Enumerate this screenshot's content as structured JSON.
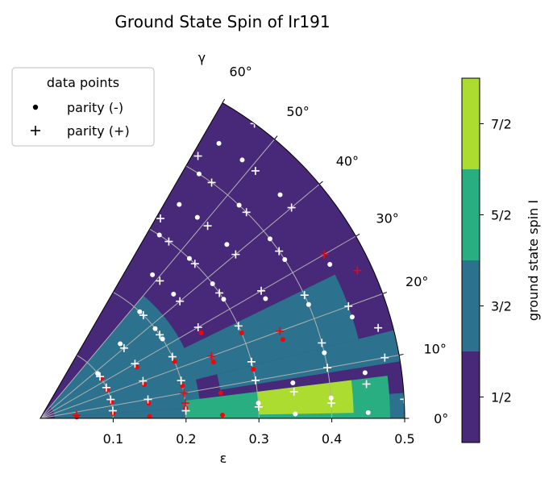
{
  "chart_data": {
    "type": "scatter",
    "title": "Ground State Spin of Ir191",
    "xlabel": "ε",
    "ylabel": "γ",
    "xlim": [
      0,
      0.5
    ],
    "ylim": [
      0,
      60
    ],
    "x_ticks": [
      "0.1",
      "0.2",
      "0.3",
      "0.4",
      "0.5"
    ],
    "angle_ticks": [
      "0°",
      "10°",
      "20°",
      "30°",
      "40°",
      "50°",
      "60°"
    ],
    "grid": true,
    "legend": {
      "title": "data points",
      "placement": "top-left",
      "entries": [
        {
          "marker": "dot",
          "label": "parity (-)"
        },
        {
          "marker": "plus",
          "label": "parity (+)"
        }
      ]
    },
    "colorbar": {
      "label": "ground state spin I",
      "ticks": [
        "1/2",
        "3/2",
        "5/2",
        "7/2"
      ],
      "colors": [
        "#482878",
        "#2c728e",
        "#28ae80",
        "#addc30"
      ]
    },
    "regions": [
      {
        "spin": "3/2",
        "eps": [
          0.02,
          0.5
        ],
        "gamma": [
          0,
          4
        ]
      },
      {
        "spin": "3/2",
        "eps": [
          0.02,
          0.22
        ],
        "gamma": [
          4,
          50
        ]
      },
      {
        "spin": "3/2",
        "eps": [
          0.18,
          0.45
        ],
        "gamma": [
          14,
          26
        ]
      },
      {
        "spin": "3/2",
        "eps": [
          0.25,
          0.5
        ],
        "gamma": [
          9,
          14
        ]
      },
      {
        "spin": "5/2",
        "eps": [
          0.2,
          0.48
        ],
        "gamma": [
          0,
          7
        ]
      },
      {
        "spin": "7/2",
        "eps": [
          0.3,
          0.43
        ],
        "gamma": [
          1,
          7
        ]
      }
    ],
    "series": [
      {
        "name": "parity (-)",
        "marker": "dot",
        "points": [
          {
            "eps": 0.3,
            "gamma": 57,
            "color": "white"
          },
          {
            "eps": 0.35,
            "gamma": 57,
            "color": "white"
          },
          {
            "eps": 0.4,
            "gamma": 57,
            "color": "white"
          },
          {
            "eps": 0.45,
            "gamma": 57,
            "color": "white"
          },
          {
            "eps": 0.25,
            "gamma": 52,
            "color": "white"
          },
          {
            "eps": 0.35,
            "gamma": 52,
            "color": "white"
          },
          {
            "eps": 0.45,
            "gamma": 52,
            "color": "white"
          },
          {
            "eps": 0.2,
            "gamma": 47,
            "color": "white"
          },
          {
            "eps": 0.3,
            "gamma": 47,
            "color": "white"
          },
          {
            "eps": 0.4,
            "gamma": 47,
            "color": "white"
          },
          {
            "eps": 0.15,
            "gamma": 43,
            "color": "white"
          },
          {
            "eps": 0.25,
            "gamma": 43,
            "color": "white"
          },
          {
            "eps": 0.35,
            "gamma": 43,
            "color": "white"
          },
          {
            "eps": 0.45,
            "gamma": 43,
            "color": "white"
          },
          {
            "eps": 0.1,
            "gamma": 38,
            "color": "white"
          },
          {
            "eps": 0.2,
            "gamma": 38,
            "color": "white"
          },
          {
            "eps": 0.3,
            "gamma": 38,
            "color": "white"
          },
          {
            "eps": 0.4,
            "gamma": 38,
            "color": "white"
          },
          {
            "eps": 0.1,
            "gamma": 33,
            "color": "red"
          },
          {
            "eps": 0.2,
            "gamma": 33,
            "color": "white"
          },
          {
            "eps": 0.3,
            "gamma": 33,
            "color": "white"
          },
          {
            "eps": 0.4,
            "gamma": 33,
            "color": "white"
          },
          {
            "eps": 0.15,
            "gamma": 28,
            "color": "red"
          },
          {
            "eps": 0.25,
            "gamma": 28,
            "color": "red"
          },
          {
            "eps": 0.35,
            "gamma": 28,
            "color": "white"
          },
          {
            "eps": 0.45,
            "gamma": 28,
            "color": "white"
          },
          {
            "eps": 0.1,
            "gamma": 23,
            "color": "red"
          },
          {
            "eps": 0.2,
            "gamma": 23,
            "color": "red"
          },
          {
            "eps": 0.3,
            "gamma": 23,
            "color": "red"
          },
          {
            "eps": 0.4,
            "gamma": 23,
            "color": "white"
          },
          {
            "eps": 0.15,
            "gamma": 18,
            "color": "red"
          },
          {
            "eps": 0.25,
            "gamma": 18,
            "color": "red"
          },
          {
            "eps": 0.35,
            "gamma": 18,
            "color": "red"
          },
          {
            "eps": 0.45,
            "gamma": 18,
            "color": "white"
          },
          {
            "eps": 0.1,
            "gamma": 13,
            "color": "red"
          },
          {
            "eps": 0.2,
            "gamma": 13,
            "color": "red"
          },
          {
            "eps": 0.3,
            "gamma": 13,
            "color": "red"
          },
          {
            "eps": 0.4,
            "gamma": 13,
            "color": "white"
          },
          {
            "eps": 0.15,
            "gamma": 8,
            "color": "red"
          },
          {
            "eps": 0.25,
            "gamma": 8,
            "color": "red"
          },
          {
            "eps": 0.35,
            "gamma": 8,
            "color": "white"
          },
          {
            "eps": 0.45,
            "gamma": 8,
            "color": "white"
          },
          {
            "eps": 0.1,
            "gamma": 4,
            "color": "red"
          },
          {
            "eps": 0.2,
            "gamma": 4,
            "color": "red"
          },
          {
            "eps": 0.3,
            "gamma": 4,
            "color": "white"
          },
          {
            "eps": 0.4,
            "gamma": 4,
            "color": "white"
          },
          {
            "eps": 0.05,
            "gamma": 2,
            "color": "red"
          },
          {
            "eps": 0.15,
            "gamma": 1,
            "color": "red"
          },
          {
            "eps": 0.25,
            "gamma": 1,
            "color": "red"
          },
          {
            "eps": 0.35,
            "gamma": 1,
            "color": "white"
          },
          {
            "eps": 0.45,
            "gamma": 1,
            "color": "white"
          }
        ]
      },
      {
        "name": "parity (+)",
        "marker": "plus",
        "points": [
          {
            "eps": 0.32,
            "gamma": 59,
            "color": "white"
          },
          {
            "eps": 0.42,
            "gamma": 59,
            "color": "white"
          },
          {
            "eps": 0.3,
            "gamma": 54,
            "color": "white"
          },
          {
            "eps": 0.4,
            "gamma": 54,
            "color": "white"
          },
          {
            "eps": 0.5,
            "gamma": 54,
            "color": "white"
          },
          {
            "eps": 0.25,
            "gamma": 49,
            "color": "white"
          },
          {
            "eps": 0.35,
            "gamma": 49,
            "color": "white"
          },
          {
            "eps": 0.45,
            "gamma": 49,
            "color": "white"
          },
          {
            "eps": 0.2,
            "gamma": 45,
            "color": "white"
          },
          {
            "eps": 0.3,
            "gamma": 45,
            "color": "white"
          },
          {
            "eps": 0.4,
            "gamma": 45,
            "color": "white"
          },
          {
            "eps": 0.15,
            "gamma": 40,
            "color": "white"
          },
          {
            "eps": 0.25,
            "gamma": 40,
            "color": "white"
          },
          {
            "eps": 0.35,
            "gamma": 40,
            "color": "white"
          },
          {
            "eps": 0.45,
            "gamma": 40,
            "color": "white"
          },
          {
            "eps": 0.1,
            "gamma": 35,
            "color": "white"
          },
          {
            "eps": 0.2,
            "gamma": 35,
            "color": "white"
          },
          {
            "eps": 0.3,
            "gamma": 35,
            "color": "white"
          },
          {
            "eps": 0.4,
            "gamma": 35,
            "color": "white"
          },
          {
            "eps": 0.15,
            "gamma": 30,
            "color": "white"
          },
          {
            "eps": 0.25,
            "gamma": 30,
            "color": "white"
          },
          {
            "eps": 0.35,
            "gamma": 30,
            "color": "white"
          },
          {
            "eps": 0.45,
            "gamma": 30,
            "color": "red"
          },
          {
            "eps": 0.1,
            "gamma": 25,
            "color": "white"
          },
          {
            "eps": 0.2,
            "gamma": 25,
            "color": "white"
          },
          {
            "eps": 0.3,
            "gamma": 25,
            "color": "white"
          },
          {
            "eps": 0.4,
            "gamma": 25,
            "color": "white"
          },
          {
            "eps": 0.48,
            "gamma": 25,
            "color": "red"
          },
          {
            "eps": 0.15,
            "gamma": 20,
            "color": "white"
          },
          {
            "eps": 0.25,
            "gamma": 20,
            "color": "red"
          },
          {
            "eps": 0.35,
            "gamma": 20,
            "color": "red"
          },
          {
            "eps": 0.45,
            "gamma": 20,
            "color": "white"
          },
          {
            "eps": 0.1,
            "gamma": 15,
            "color": "white"
          },
          {
            "eps": 0.2,
            "gamma": 15,
            "color": "white"
          },
          {
            "eps": 0.3,
            "gamma": 15,
            "color": "white"
          },
          {
            "eps": 0.4,
            "gamma": 15,
            "color": "white"
          },
          {
            "eps": 0.48,
            "gamma": 15,
            "color": "white"
          },
          {
            "eps": 0.15,
            "gamma": 10,
            "color": "white"
          },
          {
            "eps": 0.2,
            "gamma": 10,
            "color": "red"
          },
          {
            "eps": 0.3,
            "gamma": 10,
            "color": "white"
          },
          {
            "eps": 0.4,
            "gamma": 10,
            "color": "white"
          },
          {
            "eps": 0.48,
            "gamma": 10,
            "color": "white"
          },
          {
            "eps": 0.1,
            "gamma": 6,
            "color": "white"
          },
          {
            "eps": 0.2,
            "gamma": 6,
            "color": "red"
          },
          {
            "eps": 0.35,
            "gamma": 6,
            "color": "white"
          },
          {
            "eps": 0.45,
            "gamma": 6,
            "color": "white"
          },
          {
            "eps": 0.05,
            "gamma": 5,
            "color": "red"
          },
          {
            "eps": 0.2,
            "gamma": 3,
            "color": "white"
          },
          {
            "eps": 0.3,
            "gamma": 3,
            "color": "white"
          },
          {
            "eps": 0.4,
            "gamma": 3,
            "color": "white"
          },
          {
            "eps": 0.5,
            "gamma": 3,
            "color": "white"
          }
        ]
      }
    ]
  }
}
